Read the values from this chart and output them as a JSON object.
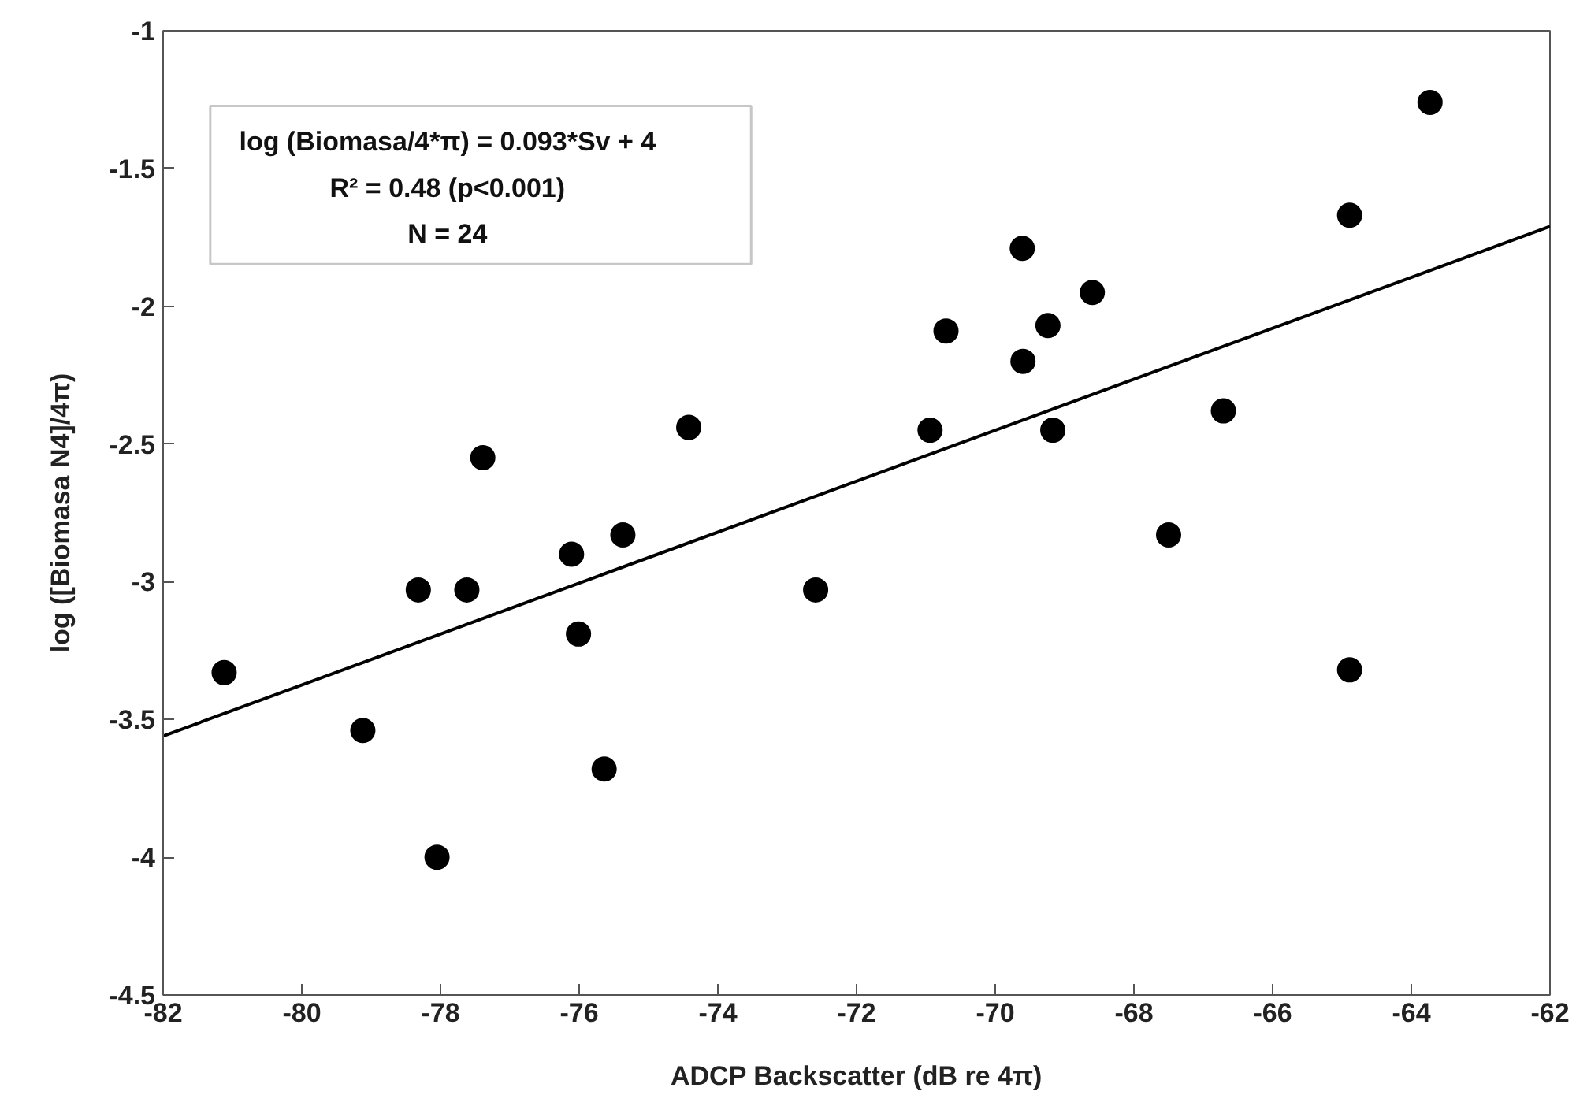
{
  "chart_data": {
    "type": "scatter",
    "xlabel": "ADCP Backscatter (dB re 4π)",
    "ylabel": "log ([Biomasa N4]/4π)",
    "annotations": [
      "log (Biomasa/4*π) = 0.093*Sv + 4",
      "R² = 0.48 (p<0.001)",
      "N = 24"
    ],
    "xlim": [
      -82,
      -62
    ],
    "xticks": [
      -82,
      -80,
      -78,
      -76,
      -74,
      -72,
      -70,
      -68,
      -66,
      -64,
      -62
    ],
    "ylim": [
      -4.5,
      -1
    ],
    "yticks": [
      -4.5,
      -4,
      -3.5,
      -3,
      -2.5,
      -2,
      -1.5,
      -1
    ],
    "grid": false,
    "series": [
      {
        "marker": "circle",
        "color": "#000000",
        "x": [
          -77.39,
          -74.42,
          -75.37,
          -76.11,
          -81.12,
          -79.12,
          -78.32,
          -77.62,
          -78.05,
          -76.01,
          -75.64,
          -72.59,
          -64.89,
          -63.73,
          -64.89,
          -69.61,
          -68.6,
          -69.24,
          -70.71,
          -69.6,
          -70.94,
          -69.17,
          -66.71,
          -67.5
        ],
        "values": [
          -2.55,
          -2.44,
          -2.83,
          -2.9,
          -3.33,
          -3.54,
          -3.03,
          -3.03,
          -4.0,
          -3.19,
          -3.68,
          -3.03,
          -3.32,
          -1.26,
          -1.67,
          -1.79,
          -1.95,
          -2.07,
          -2.09,
          -2.2,
          -2.45,
          -2.45,
          -2.38,
          -2.83
        ]
      },
      {
        "type": "line",
        "color": "#000000",
        "x": [
          -82,
          -62
        ],
        "values": [
          -3.56,
          -1.71
        ]
      }
    ]
  }
}
